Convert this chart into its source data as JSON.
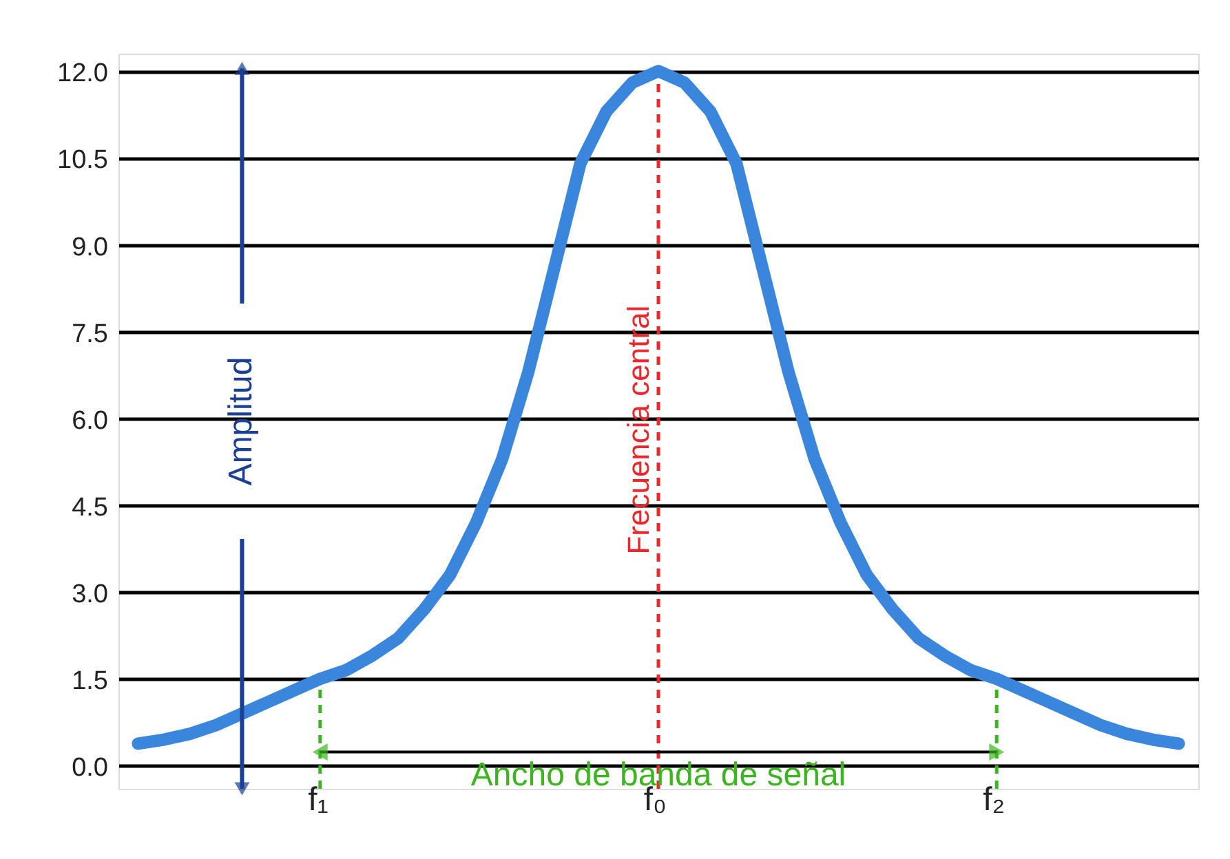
{
  "chart_data": {
    "type": "line",
    "categories": [
      null,
      null,
      null,
      null,
      null,
      null,
      null,
      "f₁",
      null,
      null,
      null,
      null,
      null,
      null,
      null,
      null,
      null,
      null,
      null,
      null,
      "f₀",
      null,
      null,
      null,
      null,
      null,
      null,
      null,
      null,
      null,
      null,
      null,
      null,
      "f₂",
      null,
      null,
      null,
      null,
      null,
      null,
      null
    ],
    "series": [
      {
        "color": "#3a86dc",
        "values": [
          0.38,
          0.45,
          0.55,
          0.7,
          0.9,
          1.1,
          1.3,
          1.5,
          1.65,
          1.9,
          2.2,
          2.7,
          3.3,
          4.2,
          5.3,
          6.8,
          8.6,
          10.4,
          11.3,
          11.8,
          12.0,
          11.8,
          11.3,
          10.4,
          8.6,
          6.8,
          5.3,
          4.2,
          3.3,
          2.7,
          2.2,
          1.9,
          1.65,
          1.5,
          1.3,
          1.1,
          0.9,
          0.7,
          0.55,
          0.45,
          0.38
        ]
      }
    ],
    "ylim": [
      -0.4,
      12.3
    ],
    "yticks": [
      {
        "value": 0,
        "label": "0.0"
      },
      {
        "value": 1.5,
        "label": "1.5"
      },
      {
        "value": 3,
        "label": "3.0"
      },
      {
        "value": 4.5,
        "label": "4.5"
      },
      {
        "value": 6,
        "label": "6.0"
      },
      {
        "value": 7.5,
        "label": "7.5"
      },
      {
        "value": 9,
        "label": "9.0"
      },
      {
        "value": 10.5,
        "label": "10.5"
      },
      {
        "value": 12,
        "label": "12.0"
      }
    ],
    "grid": "y",
    "ref_lines": [
      {
        "axis": "x",
        "value": "f₀",
        "label": "Frecuencia central",
        "color": "#e8282b",
        "line_style": "dashed"
      },
      {
        "axis": "x",
        "value": "f₁",
        "color": "#3cb521",
        "line_style": "dashed"
      },
      {
        "axis": "x",
        "value": "f₂",
        "color": "#3cb521",
        "line_style": "dashed"
      }
    ],
    "annotations": [
      "Amplitud",
      "Ancho de banda de señal"
    ]
  }
}
